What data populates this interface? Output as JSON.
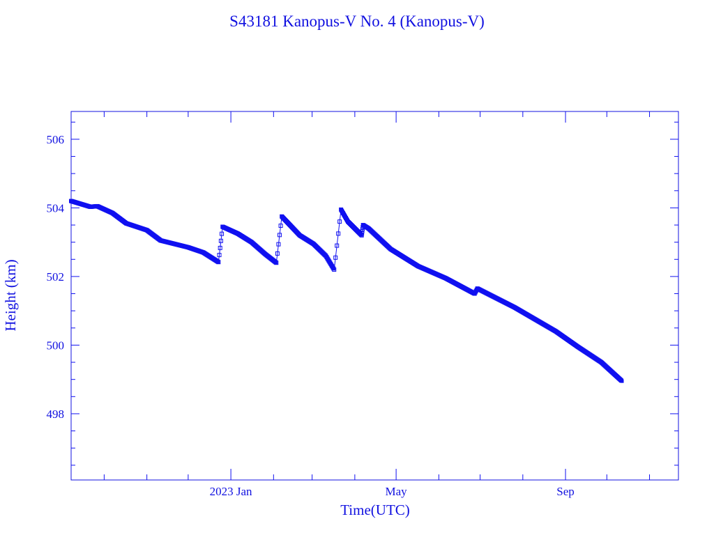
{
  "chart_data": {
    "type": "scatter",
    "title": "S43181 Kanopus-V No. 4  (Kanopus-V)",
    "xlabel": "Time(UTC)",
    "ylabel": "Height (km)",
    "xlim": [
      "2022-09-07",
      "2023-11-22"
    ],
    "ylim": [
      496.07,
      506.81
    ],
    "xticks": [
      {
        "date": "2023-01-01",
        "label": "2023 Jan"
      },
      {
        "date": "2023-05-01",
        "label": "May"
      },
      {
        "date": "2023-09-01",
        "label": "Sep"
      }
    ],
    "yticks": [
      498,
      500,
      502,
      504,
      506
    ],
    "color": "#1010f0",
    "series": [
      {
        "name": "Height",
        "points": [
          [
            "2022-09-07",
            504.2
          ],
          [
            "2022-09-21",
            504.03
          ],
          [
            "2022-09-26",
            504.05
          ],
          [
            "2022-10-07",
            503.85
          ],
          [
            "2022-10-17",
            503.55
          ],
          [
            "2022-11-01",
            503.35
          ],
          [
            "2022-11-11",
            503.05
          ],
          [
            "2022-12-01",
            502.85
          ],
          [
            "2022-12-12",
            502.7
          ],
          [
            "2022-12-23",
            502.42
          ],
          [
            "2022-12-26",
            503.45
          ],
          [
            "2023-01-06",
            503.25
          ],
          [
            "2023-01-16",
            503.0
          ],
          [
            "2023-01-26",
            502.65
          ],
          [
            "2023-02-03",
            502.4
          ],
          [
            "2023-02-07",
            503.75
          ],
          [
            "2023-02-20",
            503.2
          ],
          [
            "2023-03-02",
            502.95
          ],
          [
            "2023-03-11",
            502.6
          ],
          [
            "2023-03-17",
            502.2
          ],
          [
            "2023-03-22",
            503.95
          ],
          [
            "2023-03-27",
            503.6
          ],
          [
            "2023-04-06",
            503.2
          ],
          [
            "2023-04-07",
            503.5
          ],
          [
            "2023-04-11",
            503.4
          ],
          [
            "2023-04-27",
            502.8
          ],
          [
            "2023-05-17",
            502.3
          ],
          [
            "2023-06-06",
            501.95
          ],
          [
            "2023-06-27",
            501.5
          ],
          [
            "2023-06-29",
            501.65
          ],
          [
            "2023-07-26",
            501.1
          ],
          [
            "2023-08-25",
            500.4
          ],
          [
            "2023-09-10",
            499.95
          ],
          [
            "2023-09-27",
            499.5
          ],
          [
            "2023-10-12",
            498.95
          ]
        ]
      }
    ]
  }
}
